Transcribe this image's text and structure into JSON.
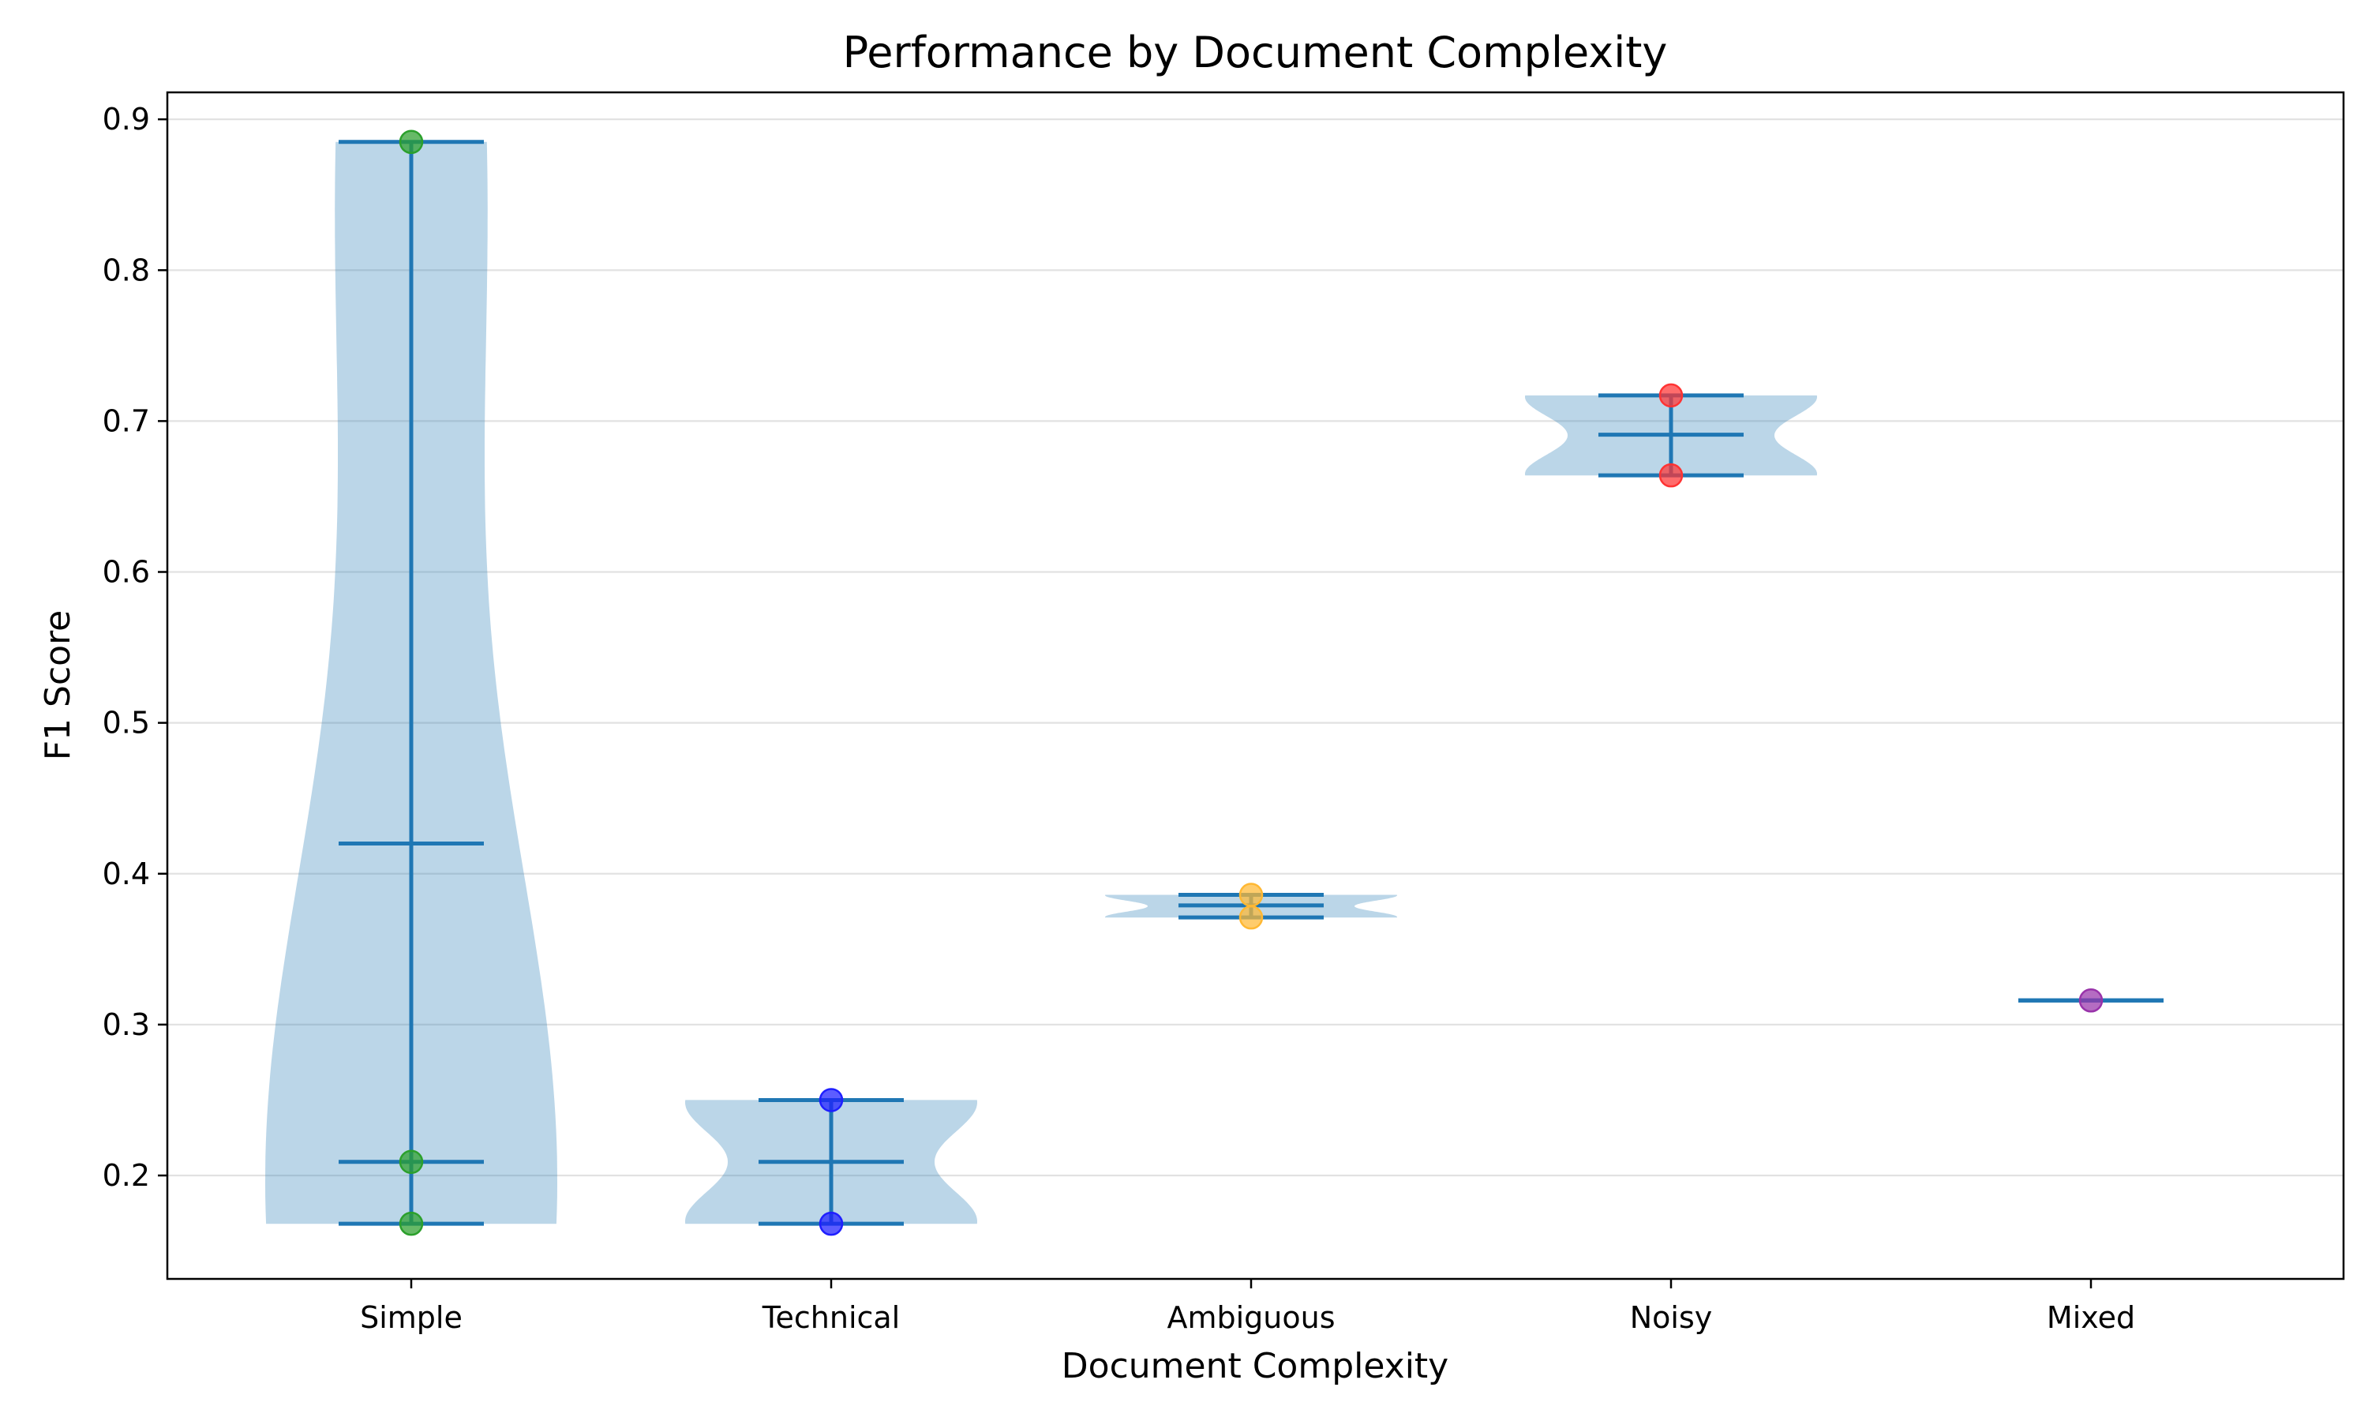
{
  "chart_data": {
    "type": "violin",
    "title": "Performance by Document Complexity",
    "xlabel": "Document Complexity",
    "ylabel": "F1 Score",
    "ylim": [
      0.132,
      0.9
    ],
    "yticks": [
      0.2,
      0.3,
      0.4,
      0.5,
      0.6,
      0.7,
      0.8,
      0.9
    ],
    "ytick_labels": [
      "0.2",
      "0.3",
      "0.4",
      "0.5",
      "0.6",
      "0.7",
      "0.8",
      "0.9"
    ],
    "grid": "y",
    "categories": [
      "Simple",
      "Technical",
      "Ambiguous",
      "Noisy",
      "Mixed"
    ],
    "series": [
      {
        "category": "Simple",
        "points": [
          0.885,
          0.209,
          0.168
        ],
        "min": 0.168,
        "max": 0.885,
        "median": 0.209,
        "mean": 0.42,
        "color": "#2ca02c"
      },
      {
        "category": "Technical",
        "points": [
          0.25,
          0.168
        ],
        "min": 0.168,
        "max": 0.25,
        "median": 0.209,
        "mean": 0.209,
        "color": "#1f1fff"
      },
      {
        "category": "Ambiguous",
        "points": [
          0.386,
          0.371
        ],
        "min": 0.371,
        "max": 0.386,
        "median": 0.379,
        "mean": 0.379,
        "color": "#ffb833"
      },
      {
        "category": "Noisy",
        "points": [
          0.717,
          0.664
        ],
        "min": 0.664,
        "max": 0.717,
        "median": 0.691,
        "mean": 0.691,
        "color": "#ff3333"
      },
      {
        "category": "Mixed",
        "points": [
          0.316
        ],
        "min": 0.316,
        "max": 0.316,
        "median": 0.316,
        "mean": 0.316,
        "color": "#9933aa"
      }
    ]
  }
}
